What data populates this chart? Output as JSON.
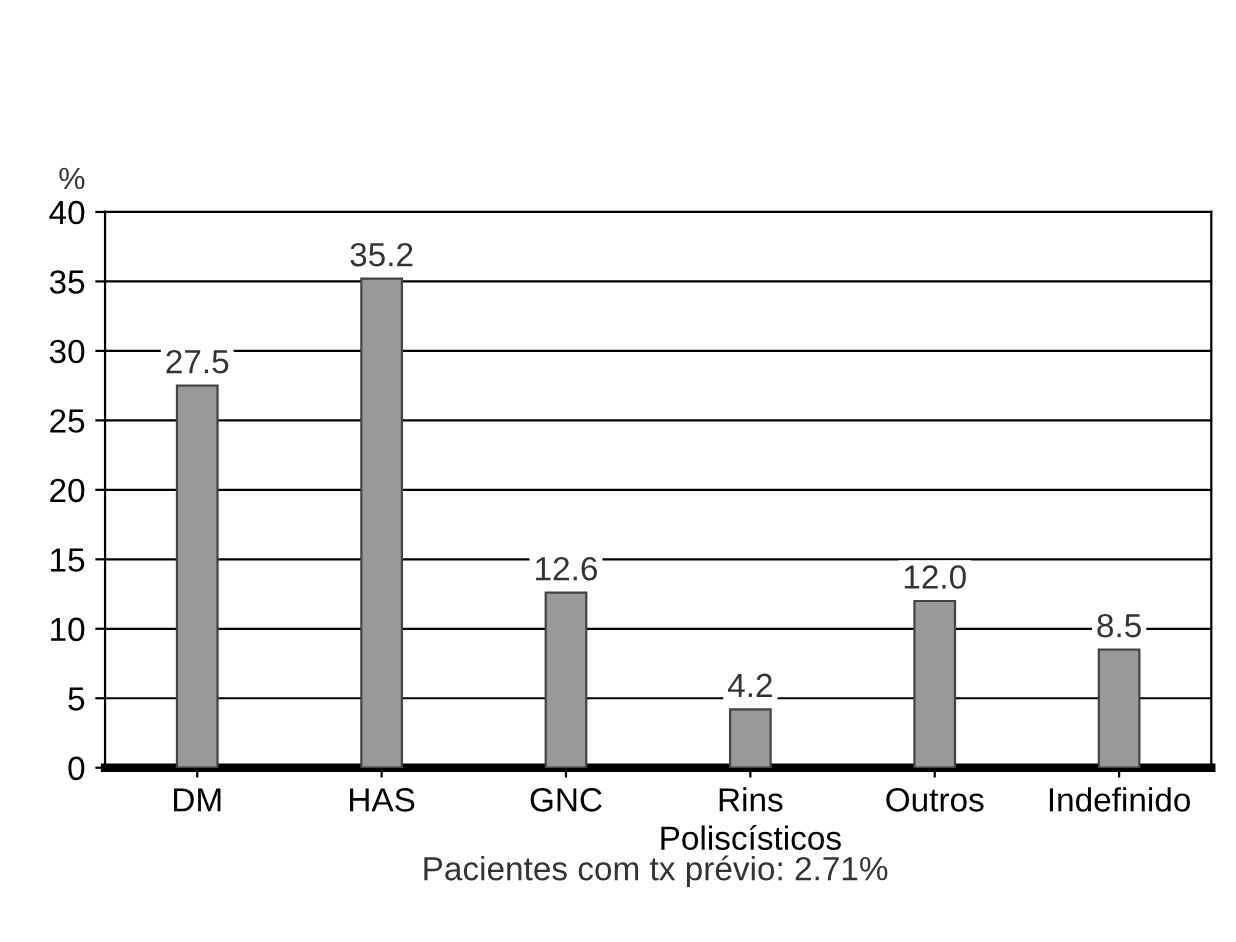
{
  "chart_data": {
    "type": "bar",
    "ylabel": "%",
    "categories": [
      "DM",
      "HAS",
      "GNC",
      "Rins\nPoliscísticos",
      "Outros",
      "Indefinido"
    ],
    "values": [
      27.5,
      35.2,
      12.6,
      4.2,
      12.0,
      8.5
    ],
    "value_labels": [
      "27.5",
      "35.2",
      "12.6",
      "4.2",
      "12.0",
      "8.5"
    ],
    "color": "#999999",
    "ylim": [
      0,
      40
    ],
    "yticks": [
      0,
      5,
      10,
      15,
      20,
      25,
      30,
      35,
      40
    ],
    "grid": "y",
    "annotations": [
      "Pacientes com tx prévio: 2.71%"
    ]
  }
}
